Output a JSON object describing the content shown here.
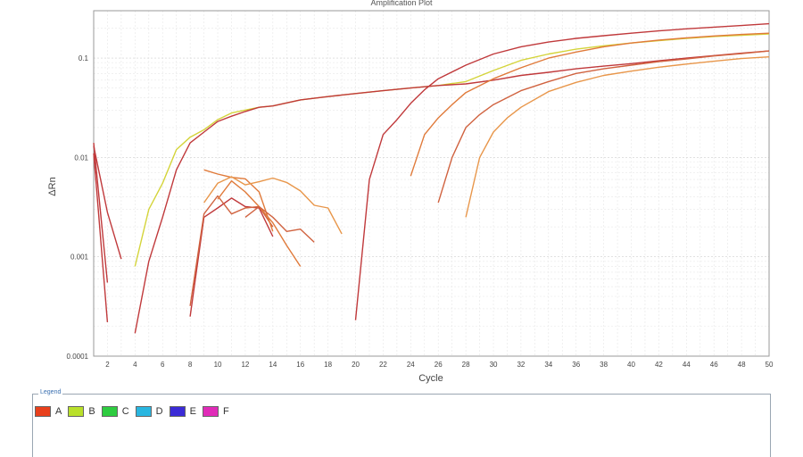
{
  "chart_data": {
    "type": "line",
    "title": "Amplification Plot",
    "xlabel": "Cycle",
    "ylabel": "ΔRn",
    "xlim": [
      1,
      50
    ],
    "ylim": [
      0.0001,
      0.3
    ],
    "yscale": "log",
    "grid": true,
    "x_ticks": [
      2,
      4,
      6,
      8,
      10,
      12,
      14,
      16,
      18,
      20,
      22,
      24,
      26,
      28,
      30,
      32,
      34,
      36,
      38,
      40,
      42,
      44,
      46,
      48,
      50
    ],
    "y_ticks": [
      {
        "value": 0.0001,
        "label": "0.0001"
      },
      {
        "value": 0.001,
        "label": "0.001"
      },
      {
        "value": 0.01,
        "label": "0.01"
      },
      {
        "value": 0.1,
        "label": "0.1"
      }
    ],
    "series": [
      {
        "color": "#c0393b",
        "points": [
          [
            1,
            0.013
          ],
          [
            2,
            0.0028
          ],
          [
            3,
            0.00095
          ]
        ]
      },
      {
        "color": "#c0393b",
        "points": [
          [
            1,
            0.014
          ],
          [
            2,
            0.00055
          ]
        ]
      },
      {
        "color": "#c0393b",
        "points": [
          [
            1,
            0.011
          ],
          [
            2,
            0.00022
          ]
        ]
      },
      {
        "color": "#d4d43a",
        "points": [
          [
            4,
            0.0008
          ],
          [
            5,
            0.003
          ],
          [
            6,
            0.0055
          ],
          [
            7,
            0.012
          ],
          [
            8,
            0.016
          ],
          [
            9,
            0.019
          ],
          [
            10,
            0.024
          ],
          [
            11,
            0.028
          ],
          [
            12,
            0.03
          ],
          [
            13,
            0.032
          ],
          [
            14,
            0.033
          ],
          [
            16,
            0.038
          ],
          [
            18,
            0.041
          ],
          [
            20,
            0.044
          ],
          [
            22,
            0.047
          ],
          [
            24,
            0.05
          ],
          [
            26,
            0.053
          ],
          [
            28,
            0.058
          ],
          [
            30,
            0.075
          ],
          [
            32,
            0.095
          ],
          [
            34,
            0.11
          ],
          [
            36,
            0.123
          ],
          [
            38,
            0.133
          ],
          [
            40,
            0.142
          ],
          [
            42,
            0.15
          ],
          [
            44,
            0.158
          ],
          [
            46,
            0.165
          ],
          [
            48,
            0.17
          ],
          [
            50,
            0.175
          ]
        ]
      },
      {
        "color": "#c0393b",
        "points": [
          [
            4,
            0.00017
          ],
          [
            5,
            0.0009
          ],
          [
            6,
            0.0025
          ],
          [
            7,
            0.0075
          ],
          [
            8,
            0.014
          ],
          [
            9,
            0.018
          ],
          [
            10,
            0.023
          ],
          [
            11,
            0.026
          ],
          [
            12,
            0.029
          ],
          [
            13,
            0.032
          ],
          [
            14,
            0.033
          ],
          [
            16,
            0.038
          ],
          [
            18,
            0.041
          ],
          [
            20,
            0.044
          ],
          [
            22,
            0.047
          ],
          [
            24,
            0.05
          ],
          [
            26,
            0.053
          ],
          [
            28,
            0.055
          ],
          [
            30,
            0.06
          ],
          [
            32,
            0.067
          ],
          [
            34,
            0.072
          ],
          [
            36,
            0.078
          ],
          [
            38,
            0.083
          ],
          [
            40,
            0.088
          ],
          [
            42,
            0.094
          ],
          [
            44,
            0.1
          ],
          [
            46,
            0.106
          ],
          [
            48,
            0.112
          ],
          [
            50,
            0.118
          ]
        ]
      },
      {
        "color": "#c0393b",
        "points": [
          [
            8,
            0.00025
          ],
          [
            9,
            0.0025
          ],
          [
            10,
            0.0031
          ],
          [
            11,
            0.0039
          ],
          [
            12,
            0.0032
          ],
          [
            13,
            0.0031
          ],
          [
            14,
            0.0016
          ]
        ]
      },
      {
        "color": "#d0623f",
        "points": [
          [
            8,
            0.00032
          ],
          [
            9,
            0.0027
          ],
          [
            10,
            0.0041
          ],
          [
            11,
            0.0027
          ],
          [
            12,
            0.0031
          ],
          [
            13,
            0.0032
          ],
          [
            14,
            0.002
          ]
        ]
      },
      {
        "color": "#e07a3a",
        "points": [
          [
            9,
            0.0075
          ],
          [
            10,
            0.0068
          ],
          [
            11,
            0.0063
          ],
          [
            12,
            0.0061
          ],
          [
            13,
            0.0045
          ],
          [
            14,
            0.0018
          ]
        ]
      },
      {
        "color": "#e8964a",
        "points": [
          [
            9,
            0.0035
          ],
          [
            10,
            0.0055
          ],
          [
            11,
            0.0064
          ],
          [
            12,
            0.0053
          ],
          [
            13,
            0.0057
          ],
          [
            14,
            0.0062
          ],
          [
            15,
            0.0056
          ],
          [
            16,
            0.0046
          ],
          [
            17,
            0.0033
          ],
          [
            18,
            0.0031
          ],
          [
            19,
            0.0017
          ]
        ]
      },
      {
        "color": "#e07a3a",
        "points": [
          [
            10,
            0.0038
          ],
          [
            11,
            0.0058
          ],
          [
            12,
            0.0045
          ],
          [
            13,
            0.0032
          ],
          [
            14,
            0.0022
          ],
          [
            15,
            0.0013
          ],
          [
            16,
            0.0008
          ]
        ]
      },
      {
        "color": "#d0623f",
        "points": [
          [
            12,
            0.0025
          ],
          [
            13,
            0.0032
          ],
          [
            14,
            0.0025
          ],
          [
            15,
            0.0018
          ],
          [
            16,
            0.0019
          ],
          [
            17,
            0.0014
          ]
        ]
      },
      {
        "color": "#c0393b",
        "points": [
          [
            20,
            0.00023
          ],
          [
            21,
            0.006
          ],
          [
            22,
            0.017
          ],
          [
            23,
            0.024
          ],
          [
            24,
            0.035
          ],
          [
            25,
            0.048
          ],
          [
            26,
            0.062
          ],
          [
            28,
            0.085
          ],
          [
            30,
            0.11
          ],
          [
            32,
            0.13
          ],
          [
            34,
            0.145
          ],
          [
            36,
            0.158
          ],
          [
            38,
            0.168
          ],
          [
            40,
            0.178
          ],
          [
            42,
            0.188
          ],
          [
            44,
            0.197
          ],
          [
            46,
            0.205
          ],
          [
            48,
            0.213
          ],
          [
            50,
            0.222
          ]
        ]
      },
      {
        "color": "#e07a3a",
        "points": [
          [
            24,
            0.0065
          ],
          [
            25,
            0.017
          ],
          [
            26,
            0.025
          ],
          [
            27,
            0.034
          ],
          [
            28,
            0.045
          ],
          [
            30,
            0.062
          ],
          [
            32,
            0.08
          ],
          [
            34,
            0.1
          ],
          [
            36,
            0.115
          ],
          [
            38,
            0.13
          ],
          [
            40,
            0.142
          ],
          [
            42,
            0.152
          ],
          [
            44,
            0.16
          ],
          [
            46,
            0.167
          ],
          [
            48,
            0.173
          ],
          [
            50,
            0.178
          ]
        ]
      },
      {
        "color": "#d0623f",
        "points": [
          [
            26,
            0.0035
          ],
          [
            27,
            0.01
          ],
          [
            28,
            0.02
          ],
          [
            29,
            0.027
          ],
          [
            30,
            0.034
          ],
          [
            32,
            0.047
          ],
          [
            34,
            0.058
          ],
          [
            36,
            0.07
          ],
          [
            38,
            0.078
          ],
          [
            40,
            0.085
          ],
          [
            42,
            0.092
          ],
          [
            44,
            0.098
          ],
          [
            46,
            0.105
          ],
          [
            48,
            0.111
          ],
          [
            50,
            0.118
          ]
        ]
      },
      {
        "color": "#e8964a",
        "points": [
          [
            28,
            0.0025
          ],
          [
            29,
            0.01
          ],
          [
            30,
            0.018
          ],
          [
            31,
            0.025
          ],
          [
            32,
            0.032
          ],
          [
            34,
            0.046
          ],
          [
            36,
            0.057
          ],
          [
            38,
            0.067
          ],
          [
            40,
            0.074
          ],
          [
            42,
            0.081
          ],
          [
            44,
            0.087
          ],
          [
            46,
            0.093
          ],
          [
            48,
            0.099
          ],
          [
            50,
            0.103
          ]
        ]
      }
    ]
  },
  "legend": {
    "title": "Legend",
    "items": [
      {
        "label": "A",
        "color": "#e8401c"
      },
      {
        "label": "B",
        "color": "#b9e02a"
      },
      {
        "label": "C",
        "color": "#2ecc40"
      },
      {
        "label": "D",
        "color": "#29b6e0"
      },
      {
        "label": "E",
        "color": "#3b2bd6"
      },
      {
        "label": "F",
        "color": "#e02bb8"
      }
    ]
  }
}
